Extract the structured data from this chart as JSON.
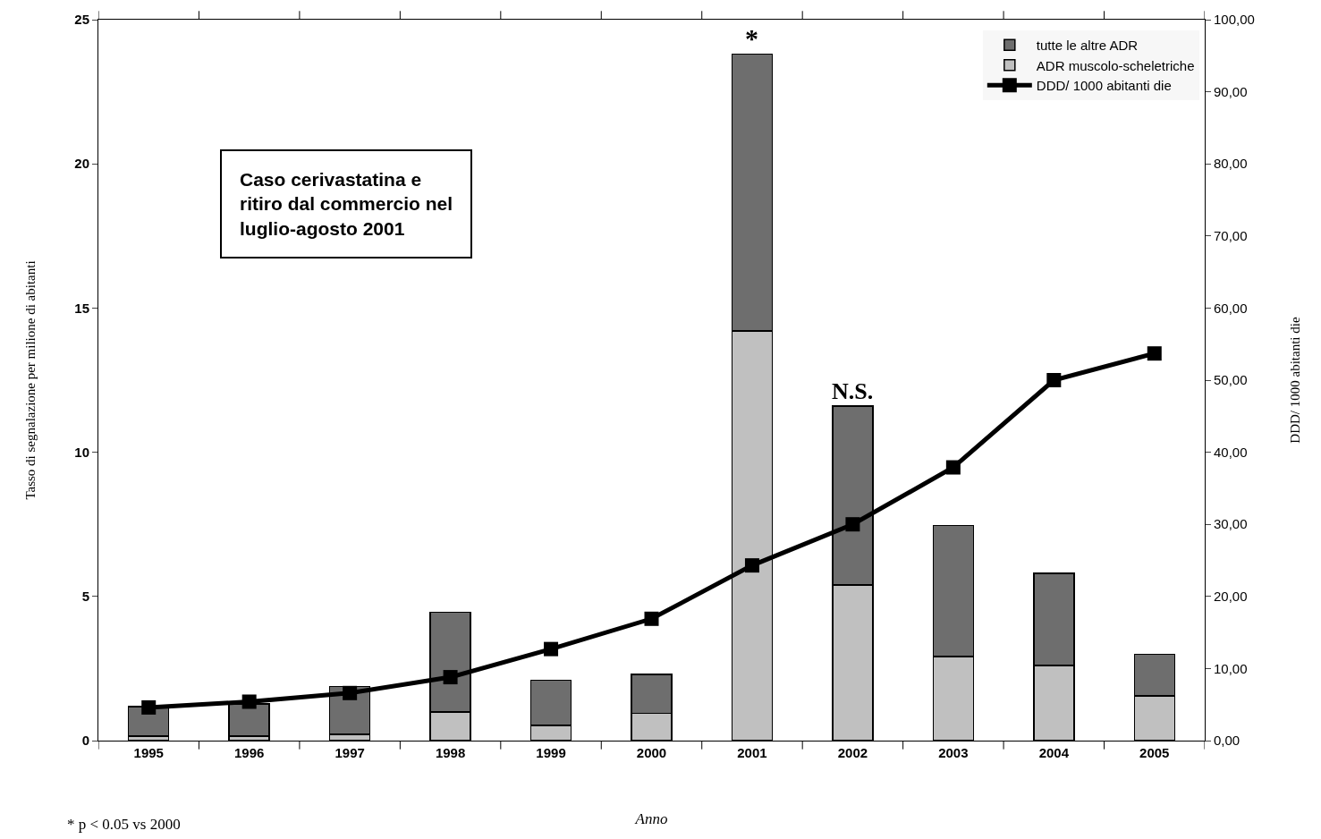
{
  "chart_data": {
    "type": "bar",
    "stacked": true,
    "categories": [
      "1995",
      "1996",
      "1997",
      "1998",
      "1999",
      "2000",
      "2001",
      "2002",
      "2003",
      "2004",
      "2005"
    ],
    "series": [
      {
        "name": "ADR muscolo-scheletriche",
        "color": "#c0c0c0",
        "values": [
          0.16,
          0.16,
          0.22,
          1.0,
          0.53,
          0.95,
          14.2,
          5.4,
          2.92,
          2.6,
          1.55
        ]
      },
      {
        "name": "tutte le altre ADR",
        "color": "#6e6e6e",
        "values": [
          1.02,
          1.11,
          1.65,
          3.45,
          1.57,
          1.35,
          9.6,
          6.2,
          4.54,
          3.2,
          1.45
        ]
      },
      {
        "name": "DDD/ 1000 abitanti die",
        "type": "line",
        "axis": "y2",
        "color": "#000000",
        "marker": "square",
        "line_style": "solid",
        "values": [
          4.6,
          5.4,
          6.6,
          8.8,
          12.7,
          16.9,
          24.3,
          30.0,
          37.9,
          50.0,
          53.7
        ]
      }
    ],
    "xlabel": "Anno",
    "ylabel": "Tasso di segnalazione per milione di abitanti",
    "y2label": "DDD/ 1000 abitanti die",
    "ylim": [
      0,
      25
    ],
    "yticks": [
      0,
      5,
      10,
      15,
      20,
      25
    ],
    "y2lim": [
      0,
      100
    ],
    "y2ticks": [
      {
        "value": 0,
        "label": "0,00"
      },
      {
        "value": 10,
        "label": "10,00"
      },
      {
        "value": 20,
        "label": "20,00"
      },
      {
        "value": 30,
        "label": "30,00"
      },
      {
        "value": 40,
        "label": "40,00"
      },
      {
        "value": 50,
        "label": "50,00"
      },
      {
        "value": 60,
        "label": "60,00"
      },
      {
        "value": 70,
        "label": "70,00"
      },
      {
        "value": 80,
        "label": "80,00"
      },
      {
        "value": 90,
        "label": "90,00"
      },
      {
        "value": 100,
        "label": "100,00"
      }
    ],
    "legend": "top right",
    "annotations": [
      {
        "text": "*",
        "x": "2001",
        "y": 23.8
      },
      {
        "text": "N.S.",
        "x": "2002",
        "y": 11.6
      },
      "Caso cerivastatina e\nritiro dal commercio nel\nluglio-agosto 2001",
      "* p < 0.05 vs 2000"
    ]
  }
}
